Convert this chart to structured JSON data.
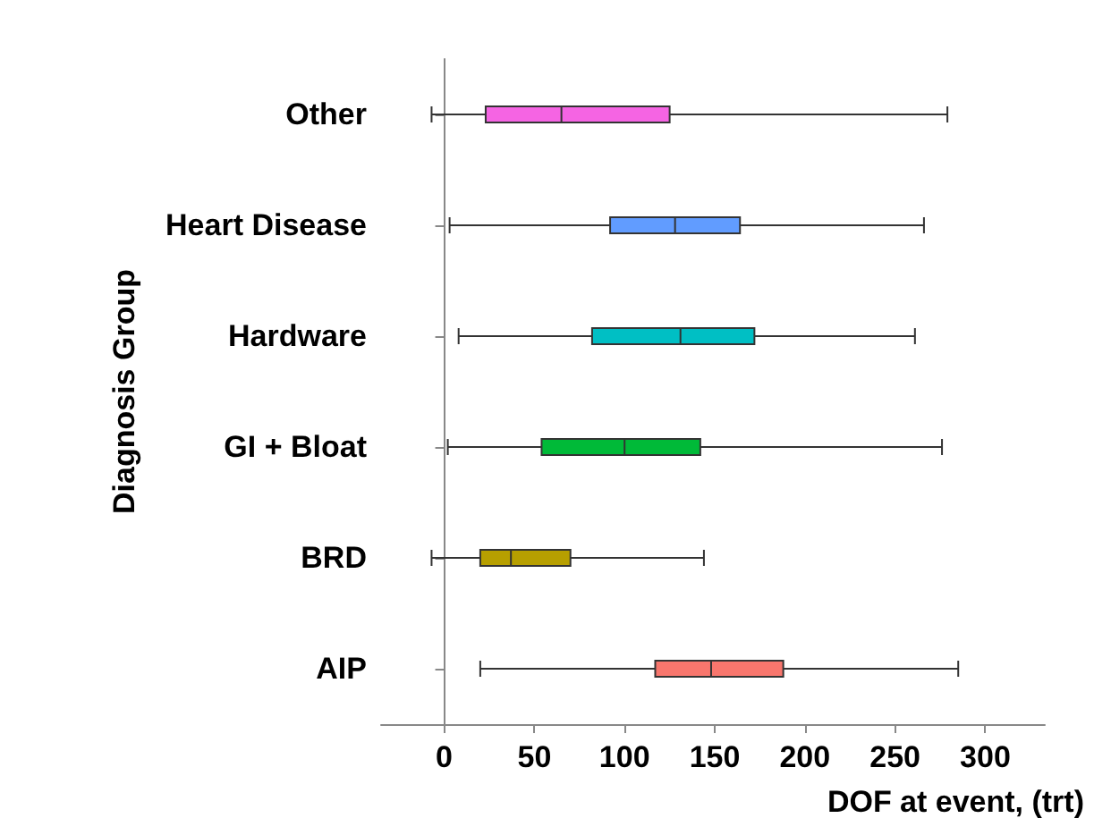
{
  "chart_data": {
    "type": "box",
    "orientation": "horizontal",
    "xlabel": "DOF at event, (trt)",
    "ylabel": "Diagnosis Group",
    "categories": [
      "Other",
      "Heart Disease",
      "Hardware",
      "GI + Bloat",
      "BRD",
      "AIP"
    ],
    "colors": [
      "#f564e3",
      "#619cff",
      "#00bfc4",
      "#00ba38",
      "#b79f00",
      "#f8766d"
    ],
    "boxes": [
      {
        "low": -7,
        "q1": 23,
        "median": 65,
        "q3": 125,
        "high": 279
      },
      {
        "low": 3,
        "q1": 92,
        "median": 128,
        "q3": 164,
        "high": 266
      },
      {
        "low": 8,
        "q1": 82,
        "median": 131,
        "q3": 172,
        "high": 261
      },
      {
        "low": 2,
        "q1": 54,
        "median": 100,
        "q3": 142,
        "high": 276
      },
      {
        "low": -7,
        "q1": 20,
        "median": 37,
        "q3": 70,
        "high": 144
      },
      {
        "low": 20,
        "q1": 117,
        "median": 148,
        "q3": 188,
        "high": 285
      }
    ],
    "xlim": [
      -35,
      333
    ],
    "xticks": [
      0,
      50,
      100,
      150,
      200,
      250,
      300
    ]
  }
}
